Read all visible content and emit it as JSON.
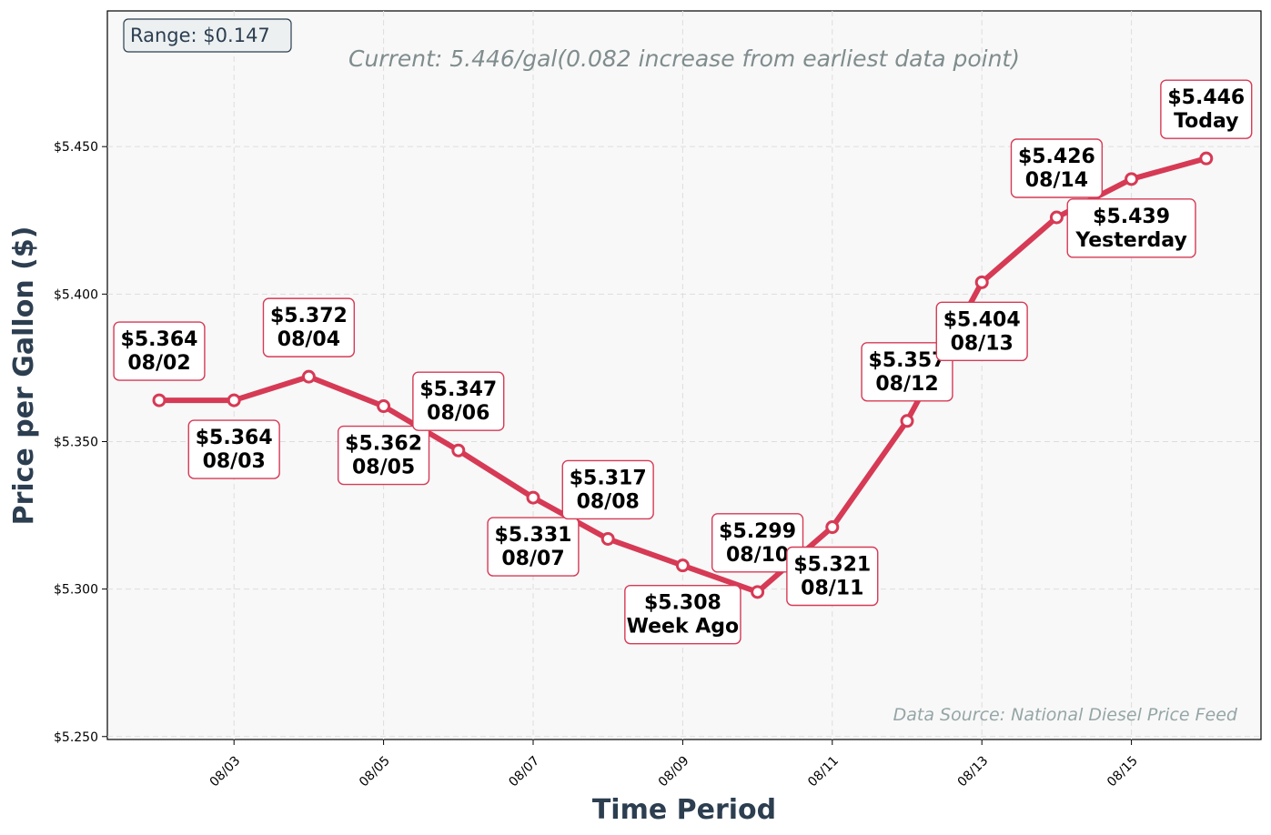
{
  "chart_data": {
    "type": "line",
    "title": "",
    "subtitle": "Current: 5.446/gal(0.082 increase from earliest data point)",
    "range_badge": "Range: $0.147",
    "source_note": "Data Source: National Diesel Price Feed",
    "xlabel": "Time Period",
    "ylabel": "Price per Gallon ($)",
    "ylim": [
      5.249,
      5.496
    ],
    "yticks": [
      5.25,
      5.3,
      5.35,
      5.4,
      5.45
    ],
    "ytick_labels": [
      "$5.250",
      "$5.300",
      "$5.350",
      "$5.400",
      "$5.450"
    ],
    "xticks": [
      "08/03",
      "08/05",
      "08/07",
      "08/09",
      "08/11",
      "08/13",
      "08/15"
    ],
    "grid": true,
    "line_color": "#d63a55",
    "x": [
      "08/02",
      "08/03",
      "08/04",
      "08/05",
      "08/06",
      "08/07",
      "08/08",
      "08/09",
      "08/10",
      "08/11",
      "08/12",
      "08/13",
      "08/14",
      "08/15",
      "08/16"
    ],
    "values": [
      5.364,
      5.364,
      5.372,
      5.362,
      5.347,
      5.331,
      5.317,
      5.308,
      5.299,
      5.321,
      5.357,
      5.404,
      5.426,
      5.439,
      5.446
    ],
    "point_labels": [
      {
        "price": "$5.364",
        "tag": "08/02",
        "side": "above"
      },
      {
        "price": "$5.364",
        "tag": "08/03",
        "side": "below"
      },
      {
        "price": "$5.372",
        "tag": "08/04",
        "side": "above"
      },
      {
        "price": "$5.362",
        "tag": "08/05",
        "side": "below"
      },
      {
        "price": "$5.347",
        "tag": "08/06",
        "side": "above"
      },
      {
        "price": "$5.331",
        "tag": "08/07",
        "side": "below"
      },
      {
        "price": "$5.317",
        "tag": "08/08",
        "side": "above"
      },
      {
        "price": "$5.308",
        "tag": "Week Ago",
        "side": "below"
      },
      {
        "price": "$5.299",
        "tag": "08/10",
        "side": "above"
      },
      {
        "price": "$5.321",
        "tag": "08/11",
        "side": "below"
      },
      {
        "price": "$5.357",
        "tag": "08/12",
        "side": "above"
      },
      {
        "price": "$5.404",
        "tag": "08/13",
        "side": "below"
      },
      {
        "price": "$5.426",
        "tag": "08/14",
        "side": "above"
      },
      {
        "price": "$5.439",
        "tag": "Yesterday",
        "side": "below"
      },
      {
        "price": "$5.446",
        "tag": "Today",
        "side": "above"
      }
    ]
  }
}
